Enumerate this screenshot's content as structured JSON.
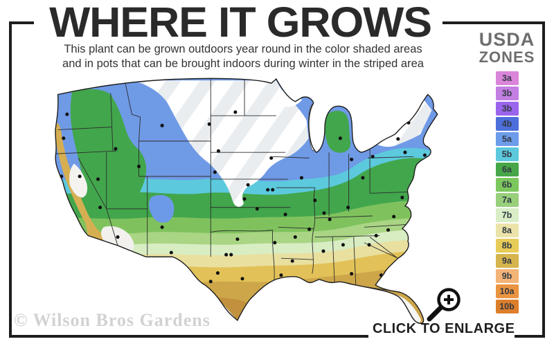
{
  "header": {
    "title": "WHERE IT GROWS",
    "subtitle_line1": "This plant can be grown outdoors year round in the color shaded areas",
    "subtitle_line2": "and in pots that can be brought indoors during winter in the striped area"
  },
  "legend": {
    "title_line1": "USDA",
    "title_line2": "ZONES",
    "zones": [
      {
        "label": "3a",
        "color": "#da84da"
      },
      {
        "label": "3b",
        "color": "#c47fe3"
      },
      {
        "label": "3b",
        "color": "#9b64ec"
      },
      {
        "label": "4b",
        "color": "#4d6fdb"
      },
      {
        "label": "5a",
        "color": "#6d9cea"
      },
      {
        "label": "5b",
        "color": "#5cc9dd"
      },
      {
        "label": "6a",
        "color": "#46a648"
      },
      {
        "label": "6b",
        "color": "#7cc75e"
      },
      {
        "label": "7a",
        "color": "#98cf7b"
      },
      {
        "label": "7b",
        "color": "#d9eec6"
      },
      {
        "label": "8a",
        "color": "#ece3a9"
      },
      {
        "label": "8b",
        "color": "#e8cc58"
      },
      {
        "label": "9a",
        "color": "#d7b54d"
      },
      {
        "label": "9b",
        "color": "#f3b478"
      },
      {
        "label": "10a",
        "color": "#eb9440"
      },
      {
        "label": "10b",
        "color": "#dd7e2b"
      }
    ]
  },
  "map": {
    "region": "United States hardiness zone map",
    "band_colors": [
      "#ffffff",
      "#6f9ae6",
      "#5cc9dd",
      "#42a64c",
      "#7fc25d",
      "#a9d584",
      "#d9edc3",
      "#e9e0a0",
      "#e2c258",
      "#cda64a",
      "#c1913d"
    ],
    "stripe_color": "#eaedf0"
  },
  "footer": {
    "watermark": "© Wilson Bros Gardens",
    "enlarge_label": "CLICK TO ENLARGE"
  },
  "icons": {
    "magnifier": "zoom-in-magnifier"
  }
}
